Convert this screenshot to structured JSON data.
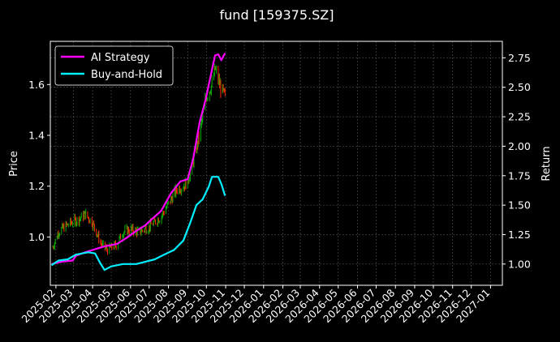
{
  "chart_data": {
    "type": "line",
    "title": "fund [159375.SZ]",
    "ylabel_left": "Price",
    "ylabel_right": "Return",
    "x_ticks": [
      "2025-02",
      "2025-03",
      "2025-04",
      "2025-05",
      "2025-06",
      "2025-07",
      "2025-08",
      "2025-09",
      "2025-10",
      "2025-11",
      "2025-12",
      "2026-01",
      "2026-02",
      "2026-03",
      "2026-04",
      "2026-05",
      "2026-06",
      "2026-07",
      "2026-08",
      "2026-09",
      "2026-10",
      "2026-11",
      "2026-12",
      "2027-01"
    ],
    "xlim": [
      "2025-01-23",
      "2027-01-20"
    ],
    "y_left": {
      "lim": [
        0.81,
        1.77
      ],
      "ticks": [
        1.0,
        1.2,
        1.4,
        1.6
      ],
      "tick_labels": [
        "1.0",
        "1.2",
        "1.4",
        "1.6"
      ]
    },
    "y_right": {
      "lim": [
        0.82,
        2.89
      ],
      "ticks": [
        1.0,
        1.25,
        1.5,
        1.75,
        2.0,
        2.25,
        2.5,
        2.75
      ],
      "tick_labels": [
        "1.00",
        "1.25",
        "1.50",
        "1.75",
        "2.00",
        "2.25",
        "2.50",
        "2.75"
      ]
    },
    "grid": true,
    "legend_position": "top-left",
    "colors": {
      "ai": "#ff00ff",
      "bh": "#00f0ff",
      "up": "#00b000",
      "down": "#ff2a00",
      "grid": "#555555"
    },
    "price": {
      "anchors": [
        [
          "2025-01-27",
          0.96
        ],
        [
          "2025-02-05",
          1.02
        ],
        [
          "2025-02-15",
          1.04
        ],
        [
          "2025-02-28",
          1.06
        ],
        [
          "2025-03-10",
          1.07
        ],
        [
          "2025-03-20",
          1.09
        ],
        [
          "2025-03-31",
          1.06
        ],
        [
          "2025-04-07",
          1.02
        ],
        [
          "2025-04-15",
          0.97
        ],
        [
          "2025-04-25",
          0.95
        ],
        [
          "2025-05-10",
          0.97
        ],
        [
          "2025-05-20",
          1.02
        ],
        [
          "2025-06-01",
          1.03
        ],
        [
          "2025-06-15",
          1.02
        ],
        [
          "2025-07-01",
          1.04
        ],
        [
          "2025-07-10",
          1.06
        ],
        [
          "2025-07-20",
          1.08
        ],
        [
          "2025-08-01",
          1.13
        ],
        [
          "2025-08-15",
          1.19
        ],
        [
          "2025-08-25",
          1.2
        ],
        [
          "2025-09-01",
          1.22
        ],
        [
          "2025-09-10",
          1.3
        ],
        [
          "2025-09-20",
          1.4
        ],
        [
          "2025-09-30",
          1.55
        ],
        [
          "2025-10-10",
          1.6
        ],
        [
          "2025-10-15",
          1.66
        ],
        [
          "2025-10-20",
          1.62
        ],
        [
          "2025-10-25",
          1.58
        ],
        [
          "2025-10-31",
          1.55
        ]
      ]
    },
    "series": [
      {
        "name": "AI Strategy",
        "axis": "right",
        "points": [
          [
            "2025-01-25",
            1.0
          ],
          [
            "2025-02-10",
            1.02
          ],
          [
            "2025-02-28",
            1.03
          ],
          [
            "2025-03-05",
            1.07
          ],
          [
            "2025-03-20",
            1.1
          ],
          [
            "2025-04-01",
            1.12
          ],
          [
            "2025-04-20",
            1.15
          ],
          [
            "2025-05-10",
            1.17
          ],
          [
            "2025-05-25",
            1.22
          ],
          [
            "2025-06-10",
            1.28
          ],
          [
            "2025-06-25",
            1.33
          ],
          [
            "2025-07-05",
            1.38
          ],
          [
            "2025-07-20",
            1.45
          ],
          [
            "2025-08-05",
            1.6
          ],
          [
            "2025-08-20",
            1.7
          ],
          [
            "2025-09-01",
            1.72
          ],
          [
            "2025-09-10",
            1.9
          ],
          [
            "2025-09-20",
            2.2
          ],
          [
            "2025-09-30",
            2.4
          ],
          [
            "2025-10-10",
            2.65
          ],
          [
            "2025-10-15",
            2.77
          ],
          [
            "2025-10-20",
            2.78
          ],
          [
            "2025-10-25",
            2.73
          ],
          [
            "2025-10-31",
            2.79
          ]
        ]
      },
      {
        "name": "Buy-and-Hold",
        "axis": "right",
        "points": [
          [
            "2025-01-25",
            0.99
          ],
          [
            "2025-02-05",
            1.03
          ],
          [
            "2025-02-20",
            1.04
          ],
          [
            "2025-03-05",
            1.08
          ],
          [
            "2025-03-25",
            1.1
          ],
          [
            "2025-04-05",
            1.09
          ],
          [
            "2025-04-12",
            1.02
          ],
          [
            "2025-04-20",
            0.95
          ],
          [
            "2025-05-01",
            0.98
          ],
          [
            "2025-05-20",
            1.0
          ],
          [
            "2025-06-10",
            1.0
          ],
          [
            "2025-06-25",
            1.02
          ],
          [
            "2025-07-10",
            1.04
          ],
          [
            "2025-07-25",
            1.08
          ],
          [
            "2025-08-10",
            1.12
          ],
          [
            "2025-08-25",
            1.2
          ],
          [
            "2025-09-05",
            1.35
          ],
          [
            "2025-09-15",
            1.5
          ],
          [
            "2025-09-25",
            1.55
          ],
          [
            "2025-10-05",
            1.66
          ],
          [
            "2025-10-10",
            1.74
          ],
          [
            "2025-10-20",
            1.74
          ],
          [
            "2025-10-25",
            1.68
          ],
          [
            "2025-10-31",
            1.58
          ]
        ]
      }
    ]
  }
}
